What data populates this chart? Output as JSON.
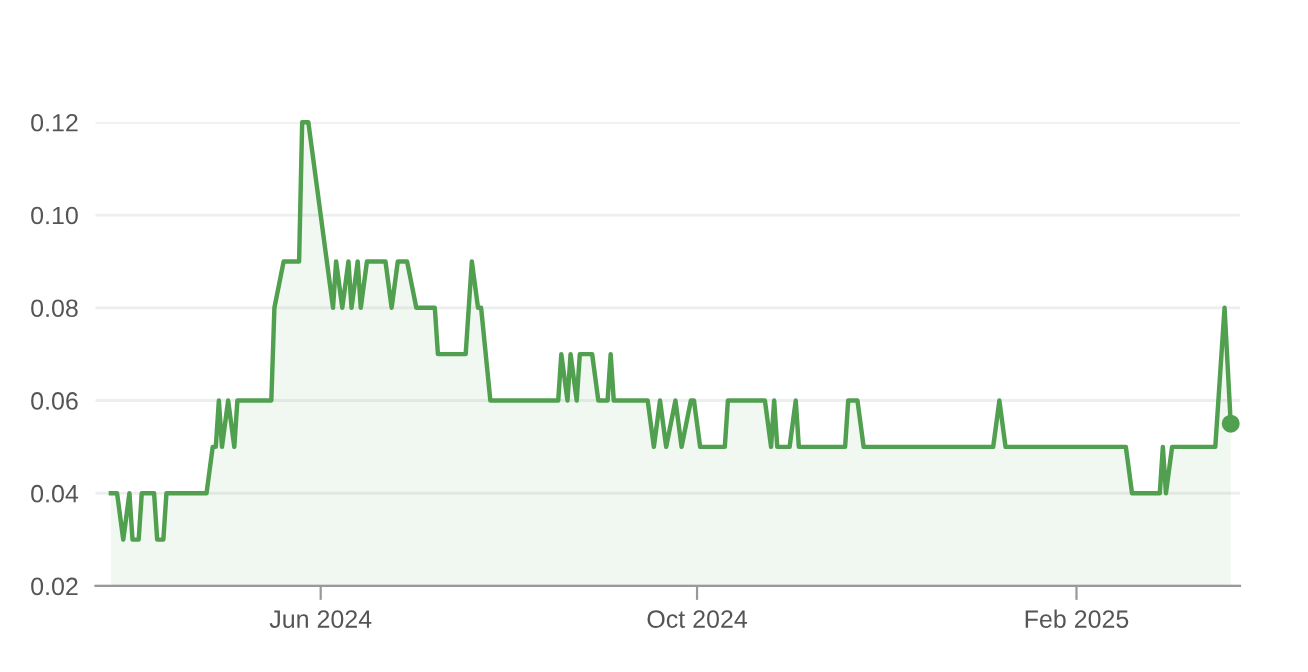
{
  "chart_data": {
    "type": "area",
    "xlim": [
      "2024-03-20",
      "2025-03-26"
    ],
    "xticks": [
      {
        "value": "2024-06-01",
        "label": "Jun 2024"
      },
      {
        "value": "2024-10-01",
        "label": "Oct 2024"
      },
      {
        "value": "2025-02-01",
        "label": "Feb 2025"
      }
    ],
    "ylim": [
      0.02,
      0.12
    ],
    "yticks": [
      0.02,
      0.04,
      0.06,
      0.08,
      {
        "value": 0.1,
        "label": "0.10"
      },
      0.12
    ],
    "grid": "y",
    "series": [
      {
        "color": "#50a050",
        "x": [
          "2024-03-25",
          "2024-03-27",
          "2024-03-29",
          "2024-03-31",
          "2024-04-01",
          "2024-04-03",
          "2024-04-04",
          "2024-04-08",
          "2024-04-09",
          "2024-04-11",
          "2024-04-12",
          "2024-04-25",
          "2024-04-27",
          "2024-04-28",
          "2024-04-29",
          "2024-04-30",
          "2024-05-02",
          "2024-05-04",
          "2024-05-05",
          "2024-05-16",
          "2024-05-17",
          "2024-05-20",
          "2024-05-25",
          "2024-05-26",
          "2024-05-28",
          "2024-06-03",
          "2024-06-05",
          "2024-06-06",
          "2024-06-08",
          "2024-06-10",
          "2024-06-11",
          "2024-06-13",
          "2024-06-14",
          "2024-06-16",
          "2024-06-22",
          "2024-06-24",
          "2024-06-26",
          "2024-06-29",
          "2024-07-02",
          "2024-07-08",
          "2024-07-09",
          "2024-07-18",
          "2024-07-20",
          "2024-07-22",
          "2024-07-23",
          "2024-07-26",
          "2024-08-17",
          "2024-08-18",
          "2024-08-20",
          "2024-08-21",
          "2024-08-23",
          "2024-08-24",
          "2024-08-28",
          "2024-08-30",
          "2024-09-02",
          "2024-09-03",
          "2024-09-04",
          "2024-09-15",
          "2024-09-17",
          "2024-09-19",
          "2024-09-21",
          "2024-09-24",
          "2024-09-26",
          "2024-09-29",
          "2024-09-30",
          "2024-10-02",
          "2024-10-10",
          "2024-10-11",
          "2024-10-23",
          "2024-10-25",
          "2024-10-26",
          "2024-10-27",
          "2024-10-31",
          "2024-11-02",
          "2024-11-03",
          "2024-11-18",
          "2024-11-19",
          "2024-11-22",
          "2024-11-24",
          "2025-01-05",
          "2025-01-07",
          "2025-01-09",
          "2025-02-17",
          "2025-02-19",
          "2025-02-28",
          "2025-03-01",
          "2025-03-02",
          "2025-03-04",
          "2025-03-18",
          "2025-03-21",
          "2025-03-23"
        ],
        "values": [
          0.04,
          0.04,
          0.03,
          0.04,
          0.03,
          0.03,
          0.04,
          0.04,
          0.03,
          0.03,
          0.04,
          0.04,
          0.05,
          0.05,
          0.06,
          0.05,
          0.06,
          0.05,
          0.06,
          0.06,
          0.08,
          0.09,
          0.09,
          0.12,
          0.12,
          0.09,
          0.08,
          0.09,
          0.08,
          0.09,
          0.08,
          0.09,
          0.08,
          0.09,
          0.09,
          0.08,
          0.09,
          0.09,
          0.08,
          0.08,
          0.07,
          0.07,
          0.09,
          0.08,
          0.08,
          0.06,
          0.06,
          0.07,
          0.06,
          0.07,
          0.06,
          0.07,
          0.07,
          0.06,
          0.06,
          0.07,
          0.06,
          0.06,
          0.05,
          0.06,
          0.05,
          0.06,
          0.05,
          0.06,
          0.06,
          0.05,
          0.05,
          0.06,
          0.06,
          0.05,
          0.06,
          0.05,
          0.05,
          0.06,
          0.05,
          0.05,
          0.06,
          0.06,
          0.05,
          0.05,
          0.06,
          0.05,
          0.05,
          0.04,
          0.04,
          0.05,
          0.04,
          0.05,
          0.05,
          0.08,
          0.055
        ]
      },
      {
        "type": "scatter",
        "color": "#50a050",
        "marker": "circle",
        "x": [
          "2025-03-23"
        ],
        "values": [
          0.055
        ]
      }
    ]
  }
}
